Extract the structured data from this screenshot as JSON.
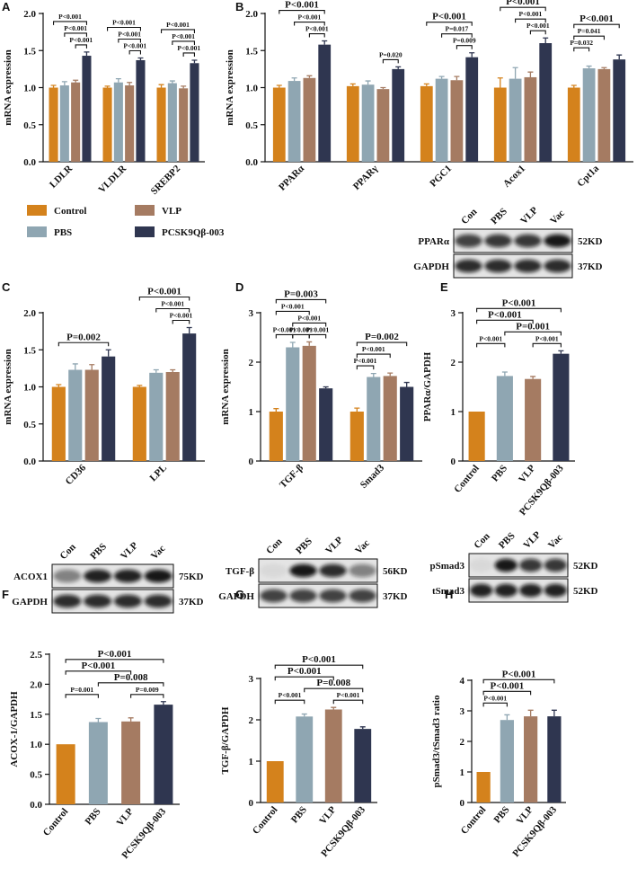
{
  "chart_data": [
    {
      "panel": "A",
      "type": "bar",
      "ylabel": "mRNA expression",
      "categories": [
        "LDLR",
        "VLDLR",
        "SREBP2"
      ],
      "series": [
        {
          "name": "Control",
          "color": "#d4821c",
          "values": [
            1.0,
            1.0,
            1.0
          ],
          "errors": [
            0.03,
            0.02,
            0.04
          ]
        },
        {
          "name": "PBS",
          "color": "#8fa6b2",
          "values": [
            1.03,
            1.07,
            1.06
          ],
          "errors": [
            0.05,
            0.05,
            0.03
          ]
        },
        {
          "name": "VLP",
          "color": "#a57b62",
          "values": [
            1.07,
            1.03,
            0.99
          ],
          "errors": [
            0.03,
            0.04,
            0.03
          ]
        },
        {
          "name": "PCSK9Qβ-003",
          "color": "#2f3650",
          "values": [
            1.43,
            1.37,
            1.33
          ],
          "errors": [
            0.05,
            0.03,
            0.04
          ]
        }
      ],
      "ylim": [
        0,
        2
      ],
      "yticks": [
        {
          "value": 0,
          "label": "0.0"
        },
        {
          "value": 0.5,
          "label": "0.5"
        },
        {
          "value": 1,
          "label": "1.0"
        },
        {
          "value": 1.5,
          "label": "1.5"
        },
        {
          "value": 2,
          "label": "2.0"
        }
      ],
      "annotations": [
        {
          "category": 0,
          "from": 2,
          "to": 3,
          "text": "P<0.001"
        },
        {
          "category": 0,
          "from": 1,
          "to": 3,
          "text": "P<0.001"
        },
        {
          "category": 0,
          "from": 0,
          "to": 3,
          "text": "P<0.001"
        },
        {
          "category": 1,
          "from": 2,
          "to": 3,
          "text": "P<0.001"
        },
        {
          "category": 1,
          "from": 1,
          "to": 3,
          "text": "P<0.001"
        },
        {
          "category": 1,
          "from": 0,
          "to": 3,
          "text": "P<0.001"
        },
        {
          "category": 2,
          "from": 2,
          "to": 3,
          "text": "P<0.001"
        },
        {
          "category": 2,
          "from": 1,
          "to": 3,
          "text": "P<0.001"
        },
        {
          "category": 2,
          "from": 0,
          "to": 3,
          "text": "P<0.001"
        }
      ]
    },
    {
      "panel": "B",
      "type": "bar",
      "ylabel": "mRNA expression",
      "categories": [
        "PPARα",
        "PPARγ",
        "PGC1",
        "Acox1",
        "Cpt1a"
      ],
      "series": [
        {
          "color": "#d4821c",
          "values": [
            1.0,
            1.02,
            1.02,
            1.0,
            1.0
          ],
          "errors": [
            0.03,
            0.03,
            0.03,
            0.13,
            0.03
          ]
        },
        {
          "color": "#8fa6b2",
          "values": [
            1.09,
            1.04,
            1.12,
            1.12,
            1.26
          ],
          "errors": [
            0.04,
            0.05,
            0.03,
            0.15,
            0.03
          ]
        },
        {
          "color": "#a57b62",
          "values": [
            1.13,
            0.98,
            1.1,
            1.14,
            1.25
          ],
          "errors": [
            0.03,
            0.02,
            0.05,
            0.07,
            0.02
          ]
        },
        {
          "color": "#2f3650",
          "values": [
            1.58,
            1.25,
            1.41,
            1.6,
            1.38
          ],
          "errors": [
            0.05,
            0.03,
            0.06,
            0.07,
            0.06
          ]
        }
      ],
      "ylim": [
        0,
        2
      ],
      "yticks": [
        {
          "value": 0,
          "label": "0.0"
        },
        {
          "value": 0.5,
          "label": "0.5"
        },
        {
          "value": 1,
          "label": "1.0"
        },
        {
          "value": 1.5,
          "label": "1.5"
        },
        {
          "value": 2,
          "label": "2.0"
        }
      ],
      "annotations": [
        {
          "category": 0,
          "from": 2,
          "to": 3,
          "text": "P<0.001"
        },
        {
          "category": 0,
          "from": 1,
          "to": 3,
          "text": "P<0.001"
        },
        {
          "category": 0,
          "from": 0,
          "to": 3,
          "text": "P<0.001"
        },
        {
          "category": 1,
          "from": 2,
          "to": 3,
          "text": "P=0.020"
        },
        {
          "category": 2,
          "from": 2,
          "to": 3,
          "text": "P=0.009"
        },
        {
          "category": 2,
          "from": 1,
          "to": 3,
          "text": "P=0.017"
        },
        {
          "category": 2,
          "from": 0,
          "to": 3,
          "text": "P<0.001"
        },
        {
          "category": 3,
          "from": 2,
          "to": 3,
          "text": "P<0.001"
        },
        {
          "category": 3,
          "from": 1,
          "to": 3,
          "text": "P<0.001"
        },
        {
          "category": 3,
          "from": 0,
          "to": 3,
          "text": "P<0.001"
        },
        {
          "category": 4,
          "from": 0,
          "to": 1,
          "text": "P=0.032"
        },
        {
          "category": 4,
          "from": 0,
          "to": 2,
          "text": "P=0.041"
        },
        {
          "category": 4,
          "from": 0,
          "to": 3,
          "text": "P<0.001"
        }
      ],
      "blot": {
        "lanes": [
          "Con",
          "PBS",
          "VLP",
          "Vac"
        ],
        "rows": [
          {
            "name": "PPARα",
            "size": "52KD"
          },
          {
            "name": "GAPDH",
            "size": "37KD"
          }
        ]
      }
    },
    {
      "panel": "C",
      "type": "bar",
      "ylabel": "mRNA expression",
      "categories": [
        "CD36",
        "LPL"
      ],
      "series": [
        {
          "color": "#d4821c",
          "values": [
            1.0,
            1.0
          ],
          "errors": [
            0.03,
            0.02
          ]
        },
        {
          "color": "#8fa6b2",
          "values": [
            1.23,
            1.19
          ],
          "errors": [
            0.08,
            0.04
          ]
        },
        {
          "color": "#a57b62",
          "values": [
            1.23,
            1.2
          ],
          "errors": [
            0.07,
            0.03
          ]
        },
        {
          "color": "#2f3650",
          "values": [
            1.41,
            1.72
          ],
          "errors": [
            0.09,
            0.08
          ]
        }
      ],
      "ylim": [
        0,
        2
      ],
      "yticks": [
        {
          "value": 0,
          "label": "0.0"
        },
        {
          "value": 0.5,
          "label": "0.5"
        },
        {
          "value": 1,
          "label": "1.0"
        },
        {
          "value": 1.5,
          "label": "1.5"
        },
        {
          "value": 2,
          "label": "2.0"
        }
      ],
      "annotations": [
        {
          "category": 0,
          "from": 0,
          "to": 3,
          "text": "P=0.002"
        },
        {
          "category": 1,
          "from": 2,
          "to": 3,
          "text": "P<0.001"
        },
        {
          "category": 1,
          "from": 1,
          "to": 3,
          "text": "P<0.001"
        },
        {
          "category": 1,
          "from": 0,
          "to": 3,
          "text": "P<0.001"
        }
      ]
    },
    {
      "panel": "D",
      "type": "bar",
      "ylabel": "mRNA expression",
      "categories": [
        "TGF-β",
        "Smad3"
      ],
      "series": [
        {
          "color": "#d4821c",
          "values": [
            1.0,
            1.0
          ],
          "errors": [
            0.06,
            0.07
          ]
        },
        {
          "color": "#8fa6b2",
          "values": [
            2.3,
            1.7
          ],
          "errors": [
            0.1,
            0.07
          ]
        },
        {
          "color": "#a57b62",
          "values": [
            2.33,
            1.72
          ],
          "errors": [
            0.08,
            0.06
          ]
        },
        {
          "color": "#2f3650",
          "values": [
            1.47,
            1.5
          ],
          "errors": [
            0.03,
            0.09
          ]
        }
      ],
      "ylim": [
        0,
        3
      ],
      "yticks": [
        0,
        1,
        2,
        3
      ],
      "annotations": [
        {
          "category": 0,
          "from": 0,
          "to": 1,
          "text": "P<0.001"
        },
        {
          "category": 0,
          "from": 1,
          "to": 2,
          "text": "P<0.001"
        },
        {
          "category": 0,
          "from": 2,
          "to": 3,
          "text": "P<0.001"
        },
        {
          "category": 0,
          "from": 1,
          "to": 3,
          "text": "P<0.001"
        },
        {
          "category": 0,
          "from": 0,
          "to": 2,
          "text": "P<0.001"
        },
        {
          "category": 0,
          "from": 0,
          "to": 3,
          "text": "P=0.003"
        },
        {
          "category": 1,
          "from": 0,
          "to": 1,
          "text": "P<0.001"
        },
        {
          "category": 1,
          "from": 0,
          "to": 2,
          "text": "P<0.001"
        },
        {
          "category": 1,
          "from": 0,
          "to": 3,
          "text": "P=0.002"
        }
      ]
    },
    {
      "panel": "E",
      "type": "bar",
      "ylabel": "PPARα/GAPDH",
      "categories": [
        "Control",
        "PBS",
        "VLP",
        "PCSK9Qβ-003"
      ],
      "values": [
        1.0,
        1.72,
        1.66,
        2.17
      ],
      "errors": [
        0,
        0.08,
        0.05,
        0.06
      ],
      "colors": [
        "#d4821c",
        "#8fa6b2",
        "#a57b62",
        "#2f3650"
      ],
      "ylim": [
        0,
        3
      ],
      "yticks": [
        0,
        1,
        2,
        3
      ],
      "annotations": [
        {
          "from": 0,
          "to": 1,
          "text": "P<0.001"
        },
        {
          "from": 2,
          "to": 3,
          "text": "P<0.001"
        },
        {
          "from": 1,
          "to": 3,
          "text": "P=0.001"
        },
        {
          "from": 0,
          "to": 2,
          "text": "P<0.001"
        },
        {
          "from": 0,
          "to": 3,
          "text": "P<0.001"
        }
      ]
    },
    {
      "panel": "F",
      "type": "bar",
      "ylabel": "ACOX-1/GAPDH",
      "categories": [
        "Control",
        "PBS",
        "VLP",
        "PCSK9Qβ-003"
      ],
      "values": [
        1.0,
        1.37,
        1.38,
        1.66
      ],
      "errors": [
        0,
        0.06,
        0.06,
        0.05
      ],
      "colors": [
        "#d4821c",
        "#8fa6b2",
        "#a57b62",
        "#2f3650"
      ],
      "ylim": [
        0,
        2.5
      ],
      "yticks": [
        {
          "value": 0,
          "label": "0.0"
        },
        {
          "value": 0.5,
          "label": "0.5"
        },
        {
          "value": 1,
          "label": "1.0"
        },
        {
          "value": 1.5,
          "label": "1.5"
        },
        {
          "value": 2,
          "label": "2.0"
        },
        {
          "value": 2.5,
          "label": "2.5"
        }
      ],
      "annotations": [
        {
          "from": 0,
          "to": 1,
          "text": "P=0.001"
        },
        {
          "from": 2,
          "to": 3,
          "text": "P=0.009"
        },
        {
          "from": 1,
          "to": 3,
          "text": "P=0.008"
        },
        {
          "from": 0,
          "to": 2,
          "text": "P<0.001"
        },
        {
          "from": 0,
          "to": 3,
          "text": "P<0.001"
        }
      ],
      "blot": {
        "lanes": [
          "Con",
          "PBS",
          "VLP",
          "Vac"
        ],
        "rows": [
          {
            "name": "ACOX1",
            "size": "75KD"
          },
          {
            "name": "GAPDH",
            "size": "37KD"
          }
        ]
      }
    },
    {
      "panel": "G",
      "type": "bar",
      "ylabel": "TGF-β/GAPDH",
      "categories": [
        "Control",
        "PBS",
        "VLP",
        "PCSK9Qβ-003"
      ],
      "values": [
        1.0,
        2.08,
        2.25,
        1.78
      ],
      "errors": [
        0,
        0.06,
        0.05,
        0.05
      ],
      "colors": [
        "#d4821c",
        "#8fa6b2",
        "#a57b62",
        "#2f3650"
      ],
      "ylim": [
        0,
        3
      ],
      "yticks": [
        0,
        1,
        2,
        3
      ],
      "annotations": [
        {
          "from": 0,
          "to": 1,
          "text": "P<0.001"
        },
        {
          "from": 2,
          "to": 3,
          "text": "P<0.001"
        },
        {
          "from": 1,
          "to": 3,
          "text": "P=0.008"
        },
        {
          "from": 0,
          "to": 2,
          "text": "P<0.001"
        },
        {
          "from": 0,
          "to": 3,
          "text": "P<0.001"
        }
      ],
      "blot": {
        "lanes": [
          "Con",
          "PBS",
          "VLP",
          "Vac"
        ],
        "rows": [
          {
            "name": "TGF-β",
            "size": "56KD"
          },
          {
            "name": "GAPDH",
            "size": "37KD"
          }
        ]
      }
    },
    {
      "panel": "H",
      "type": "bar",
      "ylabel": "pSmad3/tSmad3 ratio",
      "categories": [
        "Control",
        "PBS",
        "VLP",
        "PCSK9Qβ-003"
      ],
      "values": [
        1.0,
        2.7,
        2.82,
        2.82
      ],
      "errors": [
        0,
        0.17,
        0.2,
        0.2
      ],
      "colors": [
        "#d4821c",
        "#8fa6b2",
        "#a57b62",
        "#2f3650"
      ],
      "ylim": [
        0,
        4
      ],
      "yticks": [
        0,
        1,
        2,
        3,
        4
      ],
      "annotations": [
        {
          "from": 0,
          "to": 1,
          "text": "P<0.001"
        },
        {
          "from": 0,
          "to": 2,
          "text": "P<0.001"
        },
        {
          "from": 0,
          "to": 3,
          "text": "P<0.001"
        }
      ],
      "blot": {
        "lanes": [
          "Con",
          "PBS",
          "VLP",
          "Vac"
        ],
        "rows": [
          {
            "name": "pSmad3",
            "size": "52KD"
          },
          {
            "name": "tSmad3",
            "size": "52KD"
          }
        ]
      }
    }
  ]
}
